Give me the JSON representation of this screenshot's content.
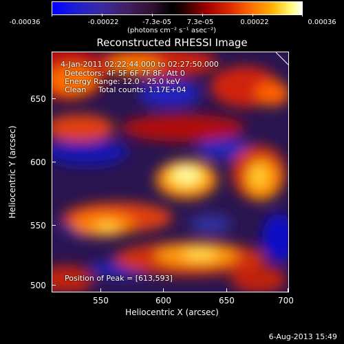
{
  "colorbar": {
    "labels": [
      "-0.00036",
      "-0.00022",
      "-7.3e-05",
      "7.3e-05",
      "0.00022",
      "0.00036"
    ],
    "unit": "(photons cm⁻² s⁻¹ asec⁻²)"
  },
  "title": "Reconstructed RHESSI Image",
  "info": {
    "time": "4-Jan-2011 02:22:44.000 to 02:27:50.000",
    "detectors": "Detectors: 4F 5F 6F 7F 8F, Att 0",
    "energy": "Energy Range: 12.0 - 25.0 keV",
    "clean": "Clean     Total counts: 1.17E+04",
    "peak": "Position of Peak = [613,593]"
  },
  "axes": {
    "xlabel": "Heliocentric X (arcsec)",
    "ylabel": "Heliocentric Y (arcsec)",
    "xticks": [
      "550",
      "600",
      "650",
      "700"
    ],
    "yticks": [
      "650",
      "600",
      "550",
      "500"
    ]
  },
  "footer": {
    "date": "6-Aug-2013 15:49"
  }
}
